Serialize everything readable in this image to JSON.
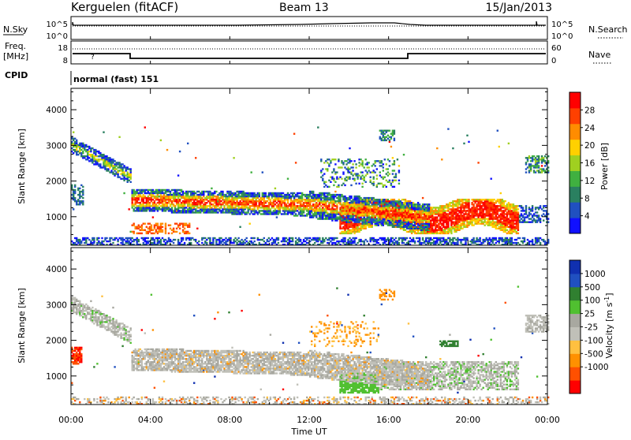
{
  "header": {
    "station": "Kerguelen (fitACF)",
    "beam": "Beam 13",
    "date": "15/Jan/2013"
  },
  "sky_panel": {
    "label": "N.Sky",
    "left_ticks": [
      "10^5",
      "10^0"
    ],
    "right_ticks": [
      "10^5",
      "10^0"
    ],
    "right_label": "N.Search"
  },
  "freq_panel": {
    "label_line1": "Freq.",
    "label_line2": "[MHz]",
    "left_ticks": [
      "18",
      "8"
    ],
    "right_ticks": [
      "60",
      "0"
    ],
    "right_label": "Nave"
  },
  "cpid": {
    "label": "CPID",
    "value": "normal (fast) 151"
  },
  "colors": {
    "power": [
      "#1010ff",
      "#2050c0",
      "#2a8060",
      "#40b040",
      "#a0d020",
      "#ffd000",
      "#ff8c00",
      "#ff4000",
      "#ff0000"
    ],
    "velocity": [
      "#ff0000",
      "#ff5000",
      "#ff9000",
      "#ffc040",
      "#c0c0b8",
      "#a8a8a0",
      "#50c030",
      "#308030",
      "#2050c0",
      "#1030b0"
    ]
  },
  "chart_data": [
    {
      "type": "heatmap",
      "name": "power",
      "ylabel": "Slant Range [km]",
      "yticks": [
        1000,
        2000,
        3000,
        4000
      ],
      "ylim": [
        200,
        4600
      ],
      "xlim": [
        0,
        24
      ],
      "colorbar_label": "Power [dB]",
      "colorbar_ticks": [
        4,
        8,
        12,
        16,
        20,
        24,
        28
      ],
      "colorbar_range": [
        0,
        32
      ]
    },
    {
      "type": "heatmap",
      "name": "velocity",
      "ylabel": "Slant Range [km]",
      "yticks": [
        1000,
        2000,
        3000,
        4000
      ],
      "ylim": [
        200,
        4600
      ],
      "xlim": [
        0,
        24
      ],
      "colorbar_label": "Velocity [m s^-1]",
      "colorbar_ticks": [
        "1000",
        "500",
        "100",
        "25",
        "-25",
        "-100",
        "-500",
        "-1000"
      ]
    }
  ],
  "time_axis": {
    "xlabel": "Time UT",
    "ticks": [
      "00:00",
      "04:00",
      "08:00",
      "12:00",
      "16:00",
      "20:00",
      "00:00"
    ],
    "tick_hours": [
      0,
      4,
      8,
      12,
      16,
      20,
      24
    ]
  }
}
